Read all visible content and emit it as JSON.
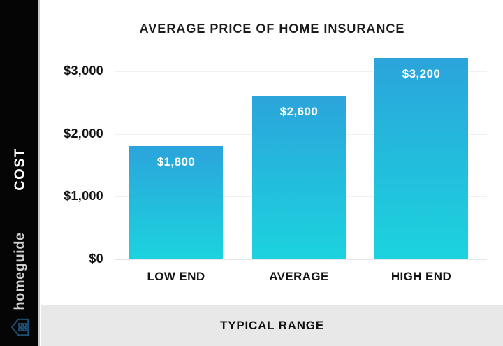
{
  "sidebar": {
    "ylabel": "COST",
    "brand": "homeguide",
    "bg_color": "#050505",
    "brand_color": "#cfcfcf",
    "logo_icon": "house-grid-icon",
    "logo_color": "#1d4f73"
  },
  "footer": {
    "label": "TYPICAL RANGE",
    "bg_color": "#e8e8e8"
  },
  "chart_data": {
    "type": "bar",
    "title": "AVERAGE PRICE OF HOME INSURANCE",
    "categories": [
      "LOW END",
      "AVERAGE",
      "HIGH END"
    ],
    "values": [
      1800,
      2600,
      3200
    ],
    "value_labels": [
      "$1,800",
      "$2,600",
      "$3,200"
    ],
    "xlabel": "TYPICAL RANGE",
    "ylabel": "COST",
    "y_ticks": [
      {
        "label": "$0",
        "value": 0
      },
      {
        "label": "$1,000",
        "value": 1000
      },
      {
        "label": "$2,000",
        "value": 2000
      },
      {
        "label": "$3,000",
        "value": 3000
      }
    ],
    "ylim": [
      0,
      3300
    ],
    "grid": true,
    "legend": false,
    "colors": {
      "bar_top": "#2BA4DB",
      "bar_bottom": "#1CD3DE",
      "grid": "#eef0f1",
      "baseline": "#e4e6e7",
      "value_label": "#ffffff",
      "text": "#141414"
    }
  }
}
